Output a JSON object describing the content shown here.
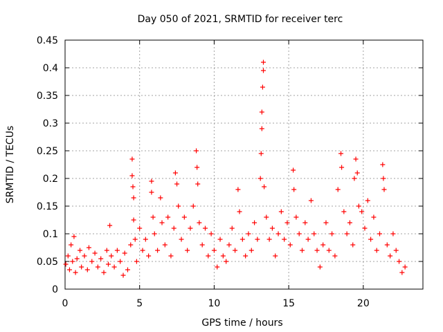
{
  "chart_data": {
    "type": "scatter",
    "title": "Day 050 of 2021, SRMTID for receiver terc",
    "xlabel": "GPS time / hours",
    "ylabel": "SRMTID / TECUs",
    "xlim": [
      0,
      24
    ],
    "ylim": [
      0,
      0.45
    ],
    "x_ticks": [
      0,
      5,
      10,
      15,
      20
    ],
    "x_tick_labels": [
      "0",
      "5",
      "10",
      "15",
      "20"
    ],
    "y_ticks": [
      0,
      0.05,
      0.1,
      0.15,
      0.2,
      0.25,
      0.3,
      0.35,
      0.4,
      0.45
    ],
    "y_tick_labels": [
      "0",
      "0.05",
      "0.1",
      "0.15",
      "0.2",
      "0.25",
      "0.3",
      "0.35",
      "0.4",
      "0.45"
    ],
    "grid": true,
    "marker": "+",
    "series": [
      {
        "name": "SRMTID",
        "color": "#ff0000",
        "points": [
          [
            0.05,
            0.045
          ],
          [
            0.2,
            0.06
          ],
          [
            0.3,
            0.035
          ],
          [
            0.4,
            0.08
          ],
          [
            0.5,
            0.05
          ],
          [
            0.6,
            0.095
          ],
          [
            0.7,
            0.03
          ],
          [
            0.8,
            0.055
          ],
          [
            1.0,
            0.07
          ],
          [
            1.1,
            0.04
          ],
          [
            1.3,
            0.06
          ],
          [
            1.5,
            0.035
          ],
          [
            1.6,
            0.075
          ],
          [
            1.8,
            0.05
          ],
          [
            2.0,
            0.065
          ],
          [
            2.2,
            0.04
          ],
          [
            2.4,
            0.055
          ],
          [
            2.6,
            0.03
          ],
          [
            2.8,
            0.07
          ],
          [
            2.9,
            0.045
          ],
          [
            3.0,
            0.115
          ],
          [
            3.1,
            0.06
          ],
          [
            3.3,
            0.04
          ],
          [
            3.5,
            0.07
          ],
          [
            3.7,
            0.05
          ],
          [
            3.9,
            0.025
          ],
          [
            4.0,
            0.065
          ],
          [
            4.2,
            0.035
          ],
          [
            4.4,
            0.08
          ],
          [
            4.5,
            0.235
          ],
          [
            4.5,
            0.205
          ],
          [
            4.55,
            0.185
          ],
          [
            4.6,
            0.165
          ],
          [
            4.6,
            0.125
          ],
          [
            4.7,
            0.09
          ],
          [
            4.8,
            0.05
          ],
          [
            5.0,
            0.11
          ],
          [
            5.2,
            0.07
          ],
          [
            5.4,
            0.09
          ],
          [
            5.6,
            0.06
          ],
          [
            5.8,
            0.195
          ],
          [
            5.8,
            0.175
          ],
          [
            5.9,
            0.13
          ],
          [
            6.0,
            0.1
          ],
          [
            6.2,
            0.07
          ],
          [
            6.4,
            0.165
          ],
          [
            6.5,
            0.12
          ],
          [
            6.7,
            0.08
          ],
          [
            6.9,
            0.13
          ],
          [
            7.1,
            0.06
          ],
          [
            7.3,
            0.11
          ],
          [
            7.4,
            0.21
          ],
          [
            7.5,
            0.19
          ],
          [
            7.6,
            0.15
          ],
          [
            7.8,
            0.09
          ],
          [
            8.0,
            0.13
          ],
          [
            8.2,
            0.07
          ],
          [
            8.4,
            0.11
          ],
          [
            8.6,
            0.15
          ],
          [
            8.8,
            0.25
          ],
          [
            8.85,
            0.22
          ],
          [
            8.9,
            0.19
          ],
          [
            9.0,
            0.12
          ],
          [
            9.2,
            0.08
          ],
          [
            9.4,
            0.11
          ],
          [
            9.6,
            0.06
          ],
          [
            9.8,
            0.1
          ],
          [
            10.0,
            0.07
          ],
          [
            10.2,
            0.04
          ],
          [
            10.4,
            0.09
          ],
          [
            10.6,
            0.06
          ],
          [
            10.8,
            0.05
          ],
          [
            11.0,
            0.08
          ],
          [
            11.2,
            0.11
          ],
          [
            11.4,
            0.07
          ],
          [
            11.6,
            0.18
          ],
          [
            11.7,
            0.14
          ],
          [
            11.9,
            0.09
          ],
          [
            12.1,
            0.06
          ],
          [
            12.3,
            0.1
          ],
          [
            12.5,
            0.07
          ],
          [
            12.7,
            0.12
          ],
          [
            12.9,
            0.09
          ],
          [
            13.1,
            0.2
          ],
          [
            13.15,
            0.245
          ],
          [
            13.2,
            0.29
          ],
          [
            13.2,
            0.32
          ],
          [
            13.25,
            0.365
          ],
          [
            13.3,
            0.395
          ],
          [
            13.3,
            0.41
          ],
          [
            13.35,
            0.185
          ],
          [
            13.5,
            0.13
          ],
          [
            13.7,
            0.09
          ],
          [
            13.9,
            0.11
          ],
          [
            14.1,
            0.06
          ],
          [
            14.3,
            0.1
          ],
          [
            14.5,
            0.14
          ],
          [
            14.7,
            0.09
          ],
          [
            14.9,
            0.12
          ],
          [
            15.1,
            0.08
          ],
          [
            15.3,
            0.215
          ],
          [
            15.35,
            0.18
          ],
          [
            15.5,
            0.13
          ],
          [
            15.7,
            0.1
          ],
          [
            15.9,
            0.07
          ],
          [
            16.1,
            0.12
          ],
          [
            16.3,
            0.09
          ],
          [
            16.5,
            0.16
          ],
          [
            16.7,
            0.1
          ],
          [
            16.9,
            0.07
          ],
          [
            17.1,
            0.04
          ],
          [
            17.3,
            0.08
          ],
          [
            17.5,
            0.12
          ],
          [
            17.7,
            0.07
          ],
          [
            17.9,
            0.1
          ],
          [
            18.1,
            0.06
          ],
          [
            18.3,
            0.18
          ],
          [
            18.5,
            0.245
          ],
          [
            18.55,
            0.22
          ],
          [
            18.7,
            0.14
          ],
          [
            18.9,
            0.1
          ],
          [
            19.1,
            0.12
          ],
          [
            19.3,
            0.08
          ],
          [
            19.4,
            0.2
          ],
          [
            19.5,
            0.235
          ],
          [
            19.6,
            0.21
          ],
          [
            19.7,
            0.15
          ],
          [
            19.9,
            0.14
          ],
          [
            20.1,
            0.11
          ],
          [
            20.3,
            0.16
          ],
          [
            20.5,
            0.09
          ],
          [
            20.7,
            0.13
          ],
          [
            20.9,
            0.07
          ],
          [
            21.1,
            0.1
          ],
          [
            21.3,
            0.225
          ],
          [
            21.35,
            0.2
          ],
          [
            21.4,
            0.18
          ],
          [
            21.6,
            0.08
          ],
          [
            21.8,
            0.06
          ],
          [
            22.0,
            0.1
          ],
          [
            22.2,
            0.07
          ],
          [
            22.4,
            0.05
          ],
          [
            22.6,
            0.03
          ],
          [
            22.8,
            0.04
          ]
        ]
      }
    ]
  }
}
